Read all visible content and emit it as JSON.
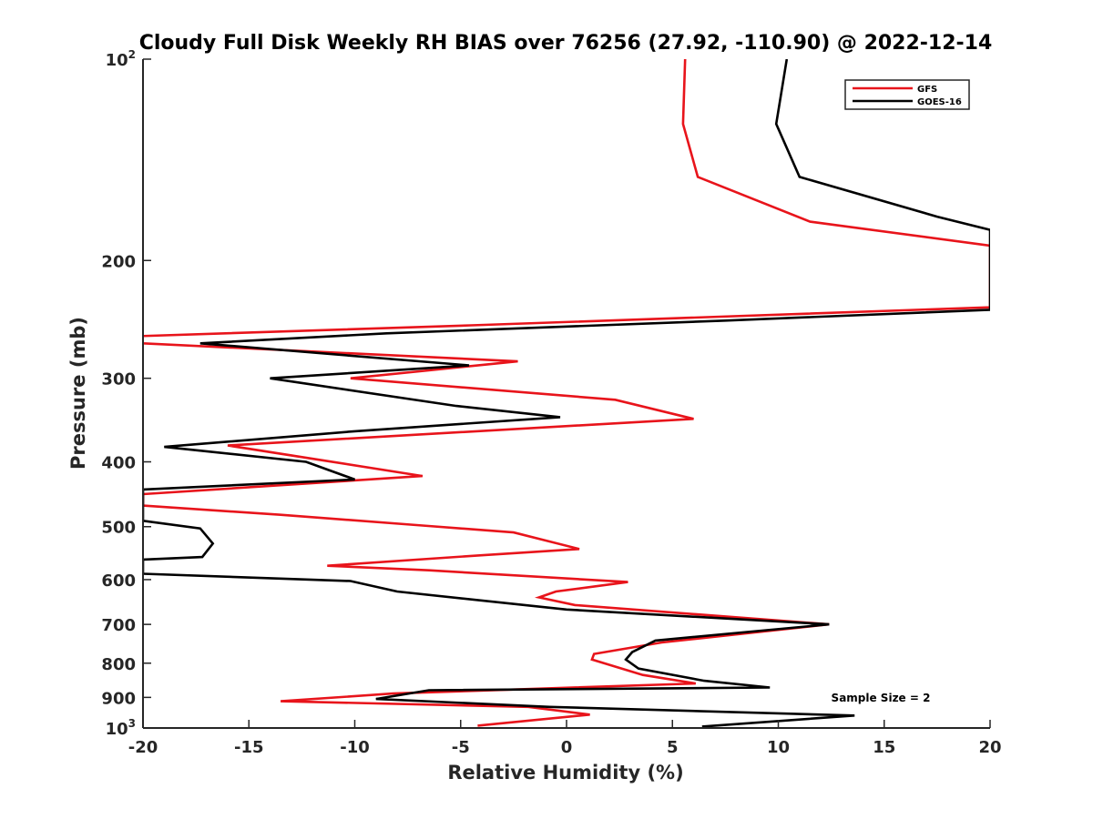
{
  "chart_data": {
    "type": "line",
    "title": "Cloudy Full Disk Weekly RH BIAS over 76256 (27.92, -110.90) @ 2022-12-14",
    "xlabel": "Relative Humidity (%)",
    "ylabel": "Pressure (mb)",
    "xlim": [
      -20,
      20
    ],
    "ylim": [
      100,
      1000
    ],
    "y_scale": "log",
    "y_reversed": true,
    "x_ticks": [
      "-20",
      "-15",
      "-10",
      "-5",
      "0",
      "5",
      "10",
      "15",
      "20"
    ],
    "y_ticks": [
      {
        "value": 100,
        "label": "10",
        "sup": "2"
      },
      {
        "value": 200,
        "label": "200"
      },
      {
        "value": 300,
        "label": "300"
      },
      {
        "value": 400,
        "label": "400"
      },
      {
        "value": 500,
        "label": "500"
      },
      {
        "value": 600,
        "label": "600"
      },
      {
        "value": 700,
        "label": "700"
      },
      {
        "value": 800,
        "label": "800"
      },
      {
        "value": 900,
        "label": "900"
      },
      {
        "value": 1000,
        "label": "10",
        "sup": "3"
      }
    ],
    "legend_position": "top-right",
    "annotation": "Sample Size = 2",
    "series": [
      {
        "name": "GFS",
        "color": "#e8141b",
        "points": [
          [
            5.6,
            100
          ],
          [
            5.5,
            125
          ],
          [
            6.2,
            150
          ],
          [
            11.5,
            175
          ],
          [
            20,
            190
          ],
          [
            20,
            235
          ],
          [
            -4.5,
            250
          ],
          [
            -21,
            260
          ],
          [
            -20,
            266
          ],
          [
            -2.3,
            283
          ],
          [
            -10.2,
            300
          ],
          [
            2.3,
            323
          ],
          [
            6.0,
            345
          ],
          [
            -16,
            378
          ],
          [
            -6.8,
            420
          ],
          [
            -20,
            447
          ],
          [
            -20,
            465
          ],
          [
            -13.5,
            480
          ],
          [
            -6.8,
            498
          ],
          [
            -2.5,
            510
          ],
          [
            0.6,
            540
          ],
          [
            -4.1,
            552
          ],
          [
            -11.3,
            572
          ],
          [
            -6.5,
            581
          ],
          [
            2.9,
            605
          ],
          [
            -0.5,
            625
          ],
          [
            -1.3,
            638
          ],
          [
            0.4,
            655
          ],
          [
            12.4,
            700
          ],
          [
            4.5,
            745
          ],
          [
            1.3,
            775
          ],
          [
            1.2,
            790
          ],
          [
            3.6,
            833
          ],
          [
            6.1,
            858
          ],
          [
            -8.2,
            888
          ],
          [
            -13.5,
            912
          ],
          [
            -1.8,
            930
          ],
          [
            1.1,
            955
          ],
          [
            -4.2,
            992
          ]
        ]
      },
      {
        "name": "GOES-16",
        "color": "#000000",
        "points": [
          [
            10.4,
            100
          ],
          [
            9.9,
            125
          ],
          [
            11.0,
            150
          ],
          [
            17.5,
            172
          ],
          [
            20,
            180
          ],
          [
            20,
            237
          ],
          [
            7.5,
            246
          ],
          [
            -8.5,
            257
          ],
          [
            -17.3,
            266
          ],
          [
            -4.6,
            287
          ],
          [
            -14,
            300
          ],
          [
            -5.2,
            330
          ],
          [
            -0.3,
            343
          ],
          [
            -10,
            360
          ],
          [
            -19,
            380
          ],
          [
            -12.3,
            400
          ],
          [
            -10,
            425
          ],
          [
            -20,
            440
          ],
          [
            -20,
            490
          ],
          [
            -17.3,
            503
          ],
          [
            -16.7,
            530
          ],
          [
            -17.2,
            555
          ],
          [
            -20,
            560
          ],
          [
            -20,
            588
          ],
          [
            -10.2,
            603
          ],
          [
            -8,
            625
          ],
          [
            0,
            665
          ],
          [
            12.4,
            700
          ],
          [
            4.2,
            740
          ],
          [
            3.1,
            770
          ],
          [
            2.8,
            790
          ],
          [
            3.4,
            815
          ],
          [
            6.5,
            850
          ],
          [
            9.6,
            870
          ],
          [
            -6.5,
            878
          ],
          [
            -9,
            905
          ],
          [
            -0.8,
            930
          ],
          [
            13.6,
            958
          ],
          [
            6.4,
            995
          ]
        ]
      }
    ]
  }
}
